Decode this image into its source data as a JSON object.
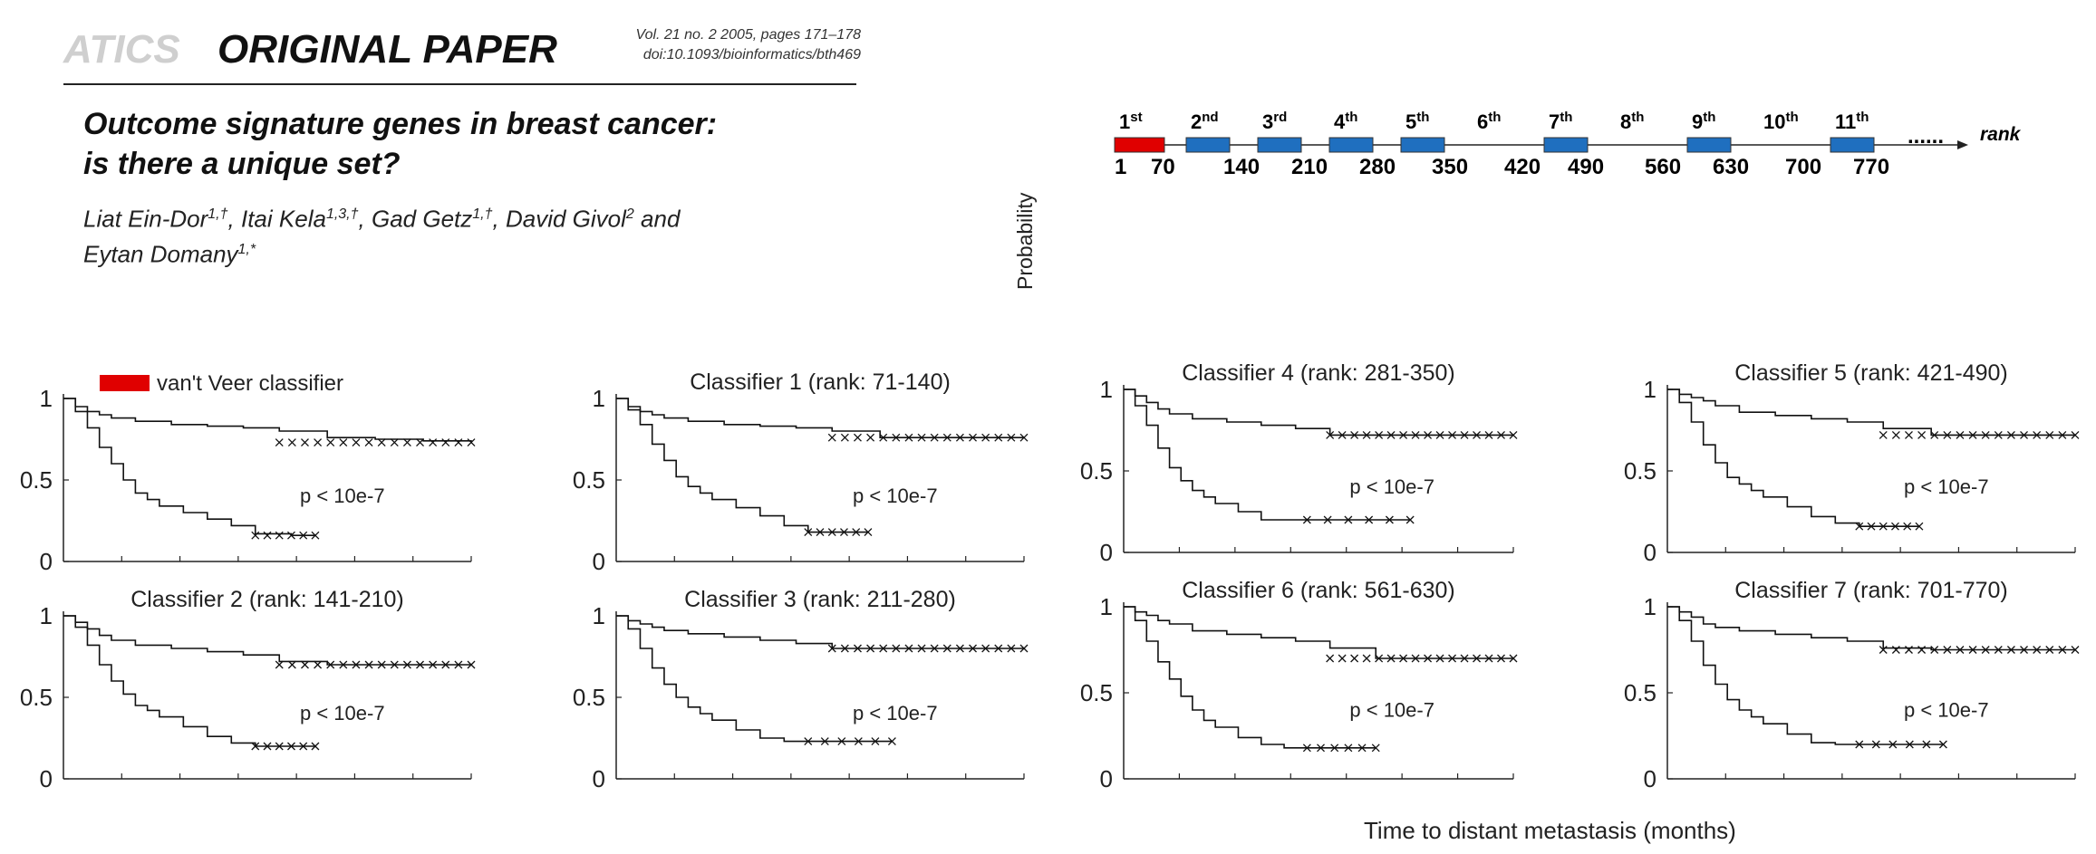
{
  "header": {
    "journal_fragment": "ATICS",
    "paper_type": "ORIGINAL PAPER",
    "citation_line1": "Vol. 21 no. 2 2005, pages 171–178",
    "citation_line2": "doi:10.1093/bioinformatics/bth469"
  },
  "title_line1": "Outcome signature genes in breast cancer:",
  "title_line2": "is there a unique set?",
  "authors_line1": [
    "Liat Ein-Dor",
    "1,†",
    ", Itai Kela",
    "1,3,†",
    ", Gad Getz",
    "1,†",
    ", David Givol",
    "2",
    " and"
  ],
  "authors_line2": [
    "Eytan Domany",
    "1,*"
  ],
  "rank_diagram": {
    "ordinals": [
      {
        "n": "1",
        "suf": "st",
        "color": "#e00000",
        "boxed": true
      },
      {
        "n": "2",
        "suf": "nd",
        "color": "#1f6fbf",
        "boxed": true
      },
      {
        "n": "3",
        "suf": "rd",
        "color": "#1f6fbf",
        "boxed": true
      },
      {
        "n": "4",
        "suf": "th",
        "color": "#1f6fbf",
        "boxed": true
      },
      {
        "n": "5",
        "suf": "th",
        "color": "#1f6fbf",
        "boxed": true
      },
      {
        "n": "6",
        "suf": "th",
        "color": "#1f6fbf",
        "boxed": false
      },
      {
        "n": "7",
        "suf": "th",
        "color": "#1f6fbf",
        "boxed": true
      },
      {
        "n": "8",
        "suf": "th",
        "color": "#1f6fbf",
        "boxed": false
      },
      {
        "n": "9",
        "suf": "th",
        "color": "#1f6fbf",
        "boxed": true
      },
      {
        "n": "10",
        "suf": "th",
        "color": "#1f6fbf",
        "boxed": false
      },
      {
        "n": "11",
        "suf": "th",
        "color": "#1f6fbf",
        "boxed": true
      }
    ],
    "ellipsis": "......",
    "axis_label": "rank",
    "ticks": [
      "1",
      "70",
      "140",
      "210",
      "280",
      "350",
      "420",
      "490",
      "560",
      "630",
      "700",
      "770"
    ]
  },
  "legend": {
    "label": "van't Veer classifier",
    "color": "#e00000"
  },
  "y_axis_title": "Probability",
  "x_axis_title": "Time to distant metastasis (months)",
  "chart_data": [
    {
      "type": "line",
      "title": "",
      "p_value": "p < 10e-7",
      "yticks": [
        "1",
        "0.5",
        "0"
      ],
      "ylim": [
        0,
        1
      ],
      "series": [
        {
          "x": [
            0,
            5,
            10,
            15,
            20,
            30,
            45,
            60,
            75,
            90,
            110,
            130,
            150,
            170
          ],
          "y": [
            1,
            0.95,
            0.92,
            0.9,
            0.88,
            0.86,
            0.84,
            0.83,
            0.82,
            0.8,
            0.76,
            0.75,
            0.74,
            0.73
          ]
        },
        {
          "x": [
            0,
            5,
            10,
            15,
            20,
            25,
            30,
            35,
            40,
            50,
            60,
            70,
            80,
            95,
            105
          ],
          "y": [
            1,
            0.92,
            0.82,
            0.7,
            0.6,
            0.5,
            0.42,
            0.38,
            0.34,
            0.3,
            0.26,
            0.22,
            0.17,
            0.16,
            0.16
          ]
        }
      ]
    },
    {
      "type": "line",
      "title": "Classifier 1 (rank: 71-140)",
      "p_value": "p < 10e-7",
      "yticks": [
        "1",
        "0.5",
        "0"
      ],
      "ylim": [
        0,
        1
      ],
      "series": [
        {
          "x": [
            0,
            5,
            10,
            15,
            20,
            30,
            45,
            60,
            75,
            90,
            110,
            130,
            150,
            170
          ],
          "y": [
            1,
            0.95,
            0.92,
            0.9,
            0.88,
            0.86,
            0.84,
            0.83,
            0.82,
            0.8,
            0.76,
            0.76,
            0.76,
            0.76
          ]
        },
        {
          "x": [
            0,
            5,
            10,
            15,
            20,
            25,
            30,
            35,
            40,
            50,
            60,
            70,
            80,
            95,
            105
          ],
          "y": [
            1,
            0.93,
            0.84,
            0.72,
            0.62,
            0.52,
            0.46,
            0.42,
            0.38,
            0.33,
            0.28,
            0.22,
            0.18,
            0.18,
            0.18
          ]
        }
      ]
    },
    {
      "type": "line",
      "title": "Classifier 2 (rank: 141-210)",
      "p_value": "p < 10e-7",
      "yticks": [
        "1",
        "0.5",
        "0"
      ],
      "ylim": [
        0,
        1
      ],
      "series": [
        {
          "x": [
            0,
            5,
            10,
            15,
            20,
            30,
            45,
            60,
            75,
            90,
            110,
            130,
            150,
            170
          ],
          "y": [
            1,
            0.96,
            0.92,
            0.88,
            0.85,
            0.82,
            0.8,
            0.78,
            0.76,
            0.72,
            0.7,
            0.7,
            0.7,
            0.7
          ]
        },
        {
          "x": [
            0,
            5,
            10,
            15,
            20,
            25,
            30,
            35,
            40,
            50,
            60,
            70,
            80,
            95,
            105
          ],
          "y": [
            1,
            0.93,
            0.82,
            0.7,
            0.6,
            0.52,
            0.45,
            0.42,
            0.38,
            0.32,
            0.26,
            0.22,
            0.2,
            0.2,
            0.2
          ]
        }
      ]
    },
    {
      "type": "line",
      "title": "Classifier 3 (rank: 211-280)",
      "p_value": "p < 10e-7",
      "yticks": [
        "1",
        "0.5",
        "0"
      ],
      "ylim": [
        0,
        1
      ],
      "series": [
        {
          "x": [
            0,
            5,
            10,
            15,
            20,
            30,
            45,
            60,
            75,
            90,
            110,
            130,
            150,
            170
          ],
          "y": [
            1,
            0.97,
            0.95,
            0.93,
            0.91,
            0.89,
            0.87,
            0.85,
            0.83,
            0.8,
            0.8,
            0.8,
            0.8,
            0.8
          ]
        },
        {
          "x": [
            0,
            5,
            10,
            15,
            20,
            25,
            30,
            35,
            40,
            50,
            60,
            70,
            80,
            95,
            115
          ],
          "y": [
            1,
            0.92,
            0.8,
            0.68,
            0.58,
            0.5,
            0.44,
            0.4,
            0.36,
            0.3,
            0.25,
            0.23,
            0.23,
            0.23,
            0.23
          ]
        }
      ]
    },
    {
      "type": "line",
      "title": "Classifier 4 (rank: 281-350)",
      "p_value": "p < 10e-7",
      "yticks": [
        "1",
        "0.5",
        "0"
      ],
      "ylim": [
        0,
        1
      ],
      "series": [
        {
          "x": [
            0,
            5,
            10,
            15,
            20,
            30,
            45,
            60,
            75,
            90,
            110,
            130,
            150,
            170
          ],
          "y": [
            1,
            0.96,
            0.92,
            0.88,
            0.85,
            0.82,
            0.8,
            0.78,
            0.76,
            0.72,
            0.72,
            0.72,
            0.72,
            0.72
          ]
        },
        {
          "x": [
            0,
            5,
            10,
            15,
            20,
            25,
            30,
            35,
            40,
            50,
            60,
            70,
            80,
            95,
            125
          ],
          "y": [
            1,
            0.9,
            0.78,
            0.64,
            0.52,
            0.44,
            0.38,
            0.34,
            0.3,
            0.25,
            0.2,
            0.2,
            0.2,
            0.2,
            0.2
          ]
        }
      ]
    },
    {
      "type": "line",
      "title": "Classifier 5 (rank: 421-490)",
      "p_value": "p < 10e-7",
      "yticks": [
        "1",
        "0.5",
        "0"
      ],
      "ylim": [
        0,
        1
      ],
      "series": [
        {
          "x": [
            0,
            5,
            10,
            15,
            20,
            30,
            45,
            60,
            75,
            90,
            110,
            130,
            150,
            170
          ],
          "y": [
            1,
            0.97,
            0.95,
            0.93,
            0.9,
            0.86,
            0.84,
            0.82,
            0.8,
            0.76,
            0.72,
            0.72,
            0.72,
            0.72
          ]
        },
        {
          "x": [
            0,
            5,
            10,
            15,
            20,
            25,
            30,
            35,
            40,
            50,
            60,
            70,
            80,
            95,
            105
          ],
          "y": [
            1,
            0.92,
            0.8,
            0.66,
            0.55,
            0.46,
            0.42,
            0.38,
            0.34,
            0.28,
            0.22,
            0.18,
            0.16,
            0.16,
            0.16
          ]
        }
      ]
    },
    {
      "type": "line",
      "title": "Classifier 6 (rank: 561-630)",
      "p_value": "p < 10e-7",
      "yticks": [
        "1",
        "0.5",
        "0"
      ],
      "ylim": [
        0,
        1
      ],
      "series": [
        {
          "x": [
            0,
            5,
            10,
            15,
            20,
            30,
            45,
            60,
            75,
            90,
            110,
            130,
            150,
            170
          ],
          "y": [
            1,
            0.97,
            0.95,
            0.92,
            0.9,
            0.86,
            0.84,
            0.82,
            0.8,
            0.76,
            0.7,
            0.7,
            0.7,
            0.7
          ]
        },
        {
          "x": [
            0,
            5,
            10,
            15,
            20,
            25,
            30,
            35,
            40,
            50,
            60,
            70,
            80,
            95,
            110
          ],
          "y": [
            1,
            0.92,
            0.8,
            0.68,
            0.58,
            0.48,
            0.4,
            0.34,
            0.3,
            0.24,
            0.2,
            0.18,
            0.18,
            0.18,
            0.18
          ]
        }
      ]
    },
    {
      "type": "line",
      "title": "Classifier 7 (rank: 701-770)",
      "p_value": "p < 10e-7",
      "yticks": [
        "1",
        "0.5",
        "0"
      ],
      "ylim": [
        0,
        1
      ],
      "series": [
        {
          "x": [
            0,
            5,
            10,
            15,
            20,
            30,
            45,
            60,
            75,
            90,
            110,
            130,
            150,
            170
          ],
          "y": [
            1,
            0.97,
            0.94,
            0.9,
            0.88,
            0.86,
            0.84,
            0.82,
            0.8,
            0.76,
            0.75,
            0.75,
            0.75,
            0.75
          ]
        },
        {
          "x": [
            0,
            5,
            10,
            15,
            20,
            25,
            30,
            35,
            40,
            50,
            60,
            70,
            80,
            95,
            115
          ],
          "y": [
            1,
            0.92,
            0.8,
            0.66,
            0.55,
            0.46,
            0.4,
            0.36,
            0.32,
            0.26,
            0.21,
            0.2,
            0.2,
            0.2,
            0.2
          ]
        }
      ]
    }
  ]
}
